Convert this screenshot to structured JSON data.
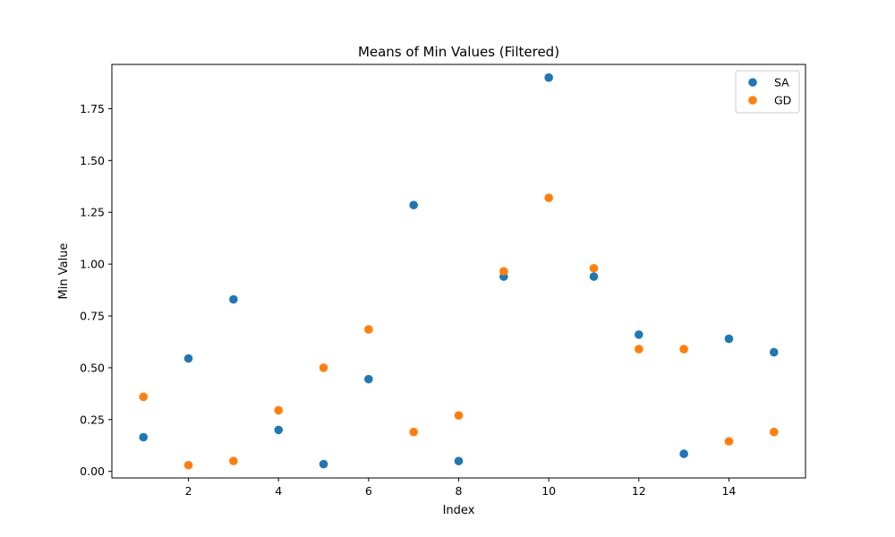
{
  "chart_data": {
    "type": "scatter",
    "title": "Means of Min Values (Filtered)",
    "xlabel": "Index",
    "ylabel": "Min Value",
    "xlim": [
      0.3,
      15.7
    ],
    "ylim": [
      -0.0315,
      1.9635
    ],
    "xticks": [
      2,
      4,
      6,
      8,
      10,
      12,
      14
    ],
    "yticks": [
      0.0,
      0.25,
      0.5,
      0.75,
      1.0,
      1.25,
      1.5,
      1.75
    ],
    "ytick_labels": [
      "0.00",
      "0.25",
      "0.50",
      "0.75",
      "1.00",
      "1.25",
      "1.50",
      "1.75"
    ],
    "grid": false,
    "legend": "top-right",
    "x": [
      1,
      2,
      3,
      4,
      5,
      6,
      7,
      8,
      9,
      10,
      11,
      12,
      13,
      14,
      15
    ],
    "series": [
      {
        "name": "SA",
        "color": "#1f77b4",
        "values": [
          0.165,
          0.545,
          0.83,
          0.2,
          0.035,
          0.445,
          1.285,
          0.05,
          0.94,
          1.9,
          0.94,
          0.66,
          0.085,
          0.64,
          0.575
        ]
      },
      {
        "name": "GD",
        "color": "#ff7f0e",
        "values": [
          0.36,
          0.03,
          0.05,
          0.295,
          0.5,
          0.685,
          0.19,
          0.27,
          0.965,
          1.32,
          0.98,
          0.59,
          0.59,
          0.145,
          0.19
        ]
      }
    ]
  }
}
